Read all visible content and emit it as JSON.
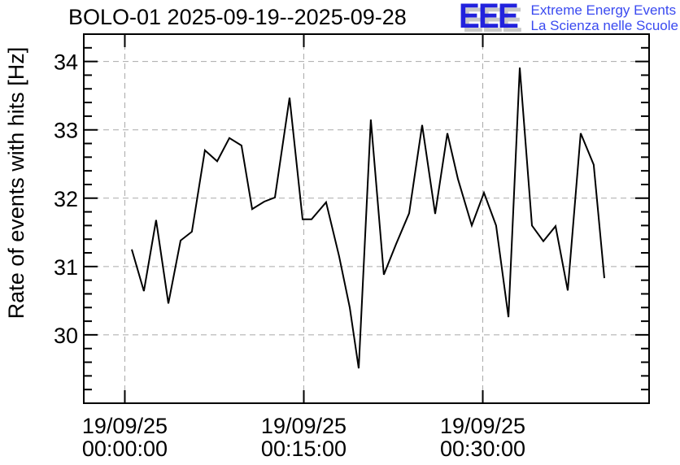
{
  "header": {
    "title": "BOLO-01 2025-09-19--2025-09-28"
  },
  "logo": {
    "letters": "EEE",
    "tagline1": "Extreme Energy Events",
    "tagline2": "La Scienza nelle Scuole",
    "letter_color": "#2222dd",
    "shadow_color": "#c8c8c8",
    "text_color": "#3a4af0"
  },
  "chart_data": {
    "type": "line",
    "title": "BOLO-01 2025-09-19--2025-09-28",
    "ylabel": "Rate of events with hits [Hz]",
    "xlabel": "",
    "ylim": [
      29.0,
      34.4
    ],
    "xlim_minutes": [
      -3.44,
      43.94
    ],
    "yticks": [
      30,
      31,
      32,
      33,
      34
    ],
    "ytick_minor_step": 0.2,
    "xticks": [
      {
        "minutes": 0,
        "line1": "19/09/25",
        "line2": "00:00:00"
      },
      {
        "minutes": 15,
        "line1": "19/09/25",
        "line2": "00:15:00"
      },
      {
        "minutes": 30,
        "line1": "19/09/25",
        "line2": "00:30:00"
      }
    ],
    "grid": true,
    "legend": null,
    "colors": {
      "line": "#000000",
      "grid": "#a9a9a9",
      "frame": "#000000"
    },
    "series": [
      {
        "name": "rate-of-events-with-hits",
        "x_minutes": [
          0.58,
          1.6,
          2.62,
          3.65,
          4.67,
          5.62,
          6.71,
          7.74,
          8.76,
          9.78,
          10.67,
          11.69,
          12.58,
          13.81,
          14.9,
          15.65,
          16.87,
          17.96,
          18.85,
          19.6,
          20.62,
          21.71,
          22.74,
          23.83,
          24.92,
          26.01,
          27.03,
          27.92,
          29.08,
          30.1,
          31.12,
          32.15,
          33.1,
          34.12,
          35.08,
          36.1,
          37.12,
          38.21,
          39.3,
          40.19
        ],
        "y_hz": [
          31.25,
          30.64,
          31.68,
          30.46,
          31.38,
          31.51,
          32.7,
          32.54,
          32.88,
          32.77,
          31.84,
          31.95,
          32.01,
          33.47,
          31.69,
          31.69,
          31.94,
          31.15,
          30.4,
          29.51,
          33.15,
          30.88,
          31.33,
          31.78,
          33.07,
          31.77,
          32.95,
          32.28,
          31.6,
          32.08,
          31.6,
          30.26,
          33.91,
          31.6,
          31.37,
          31.59,
          30.65,
          32.95,
          32.49,
          30.83
        ]
      }
    ]
  }
}
